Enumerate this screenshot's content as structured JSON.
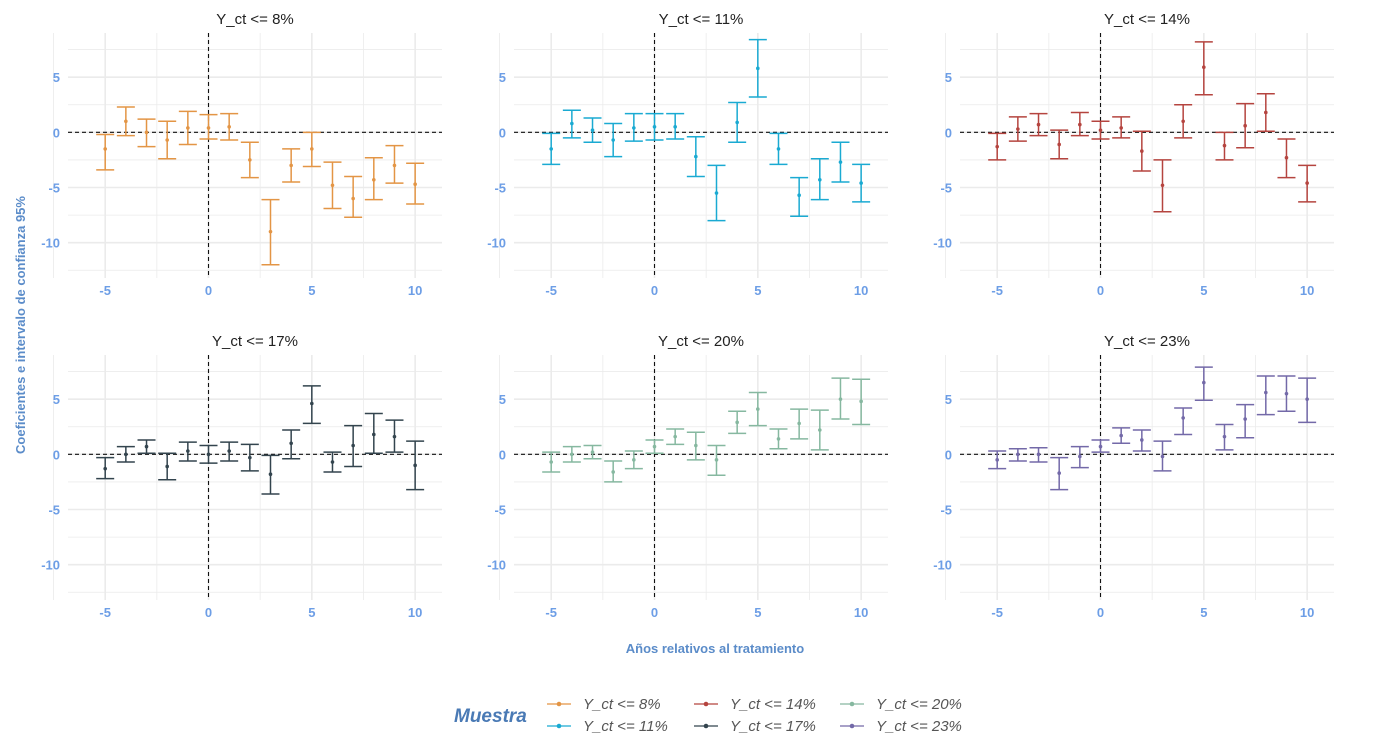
{
  "colors": {
    "Y_ct <= 8%": "#e39545",
    "Y_ct <= 11%": "#1aaad2",
    "Y_ct <= 14%": "#b5443f",
    "Y_ct <= 17%": "#33444e",
    "Y_ct <= 20%": "#86b8a0",
    "Y_ct <= 23%": "#7369a8",
    "gridline": "#ebebeb",
    "tick_text": "#6d9ee6",
    "axis_title": "#5b8cc9",
    "legend_title": "#4a7ab5"
  },
  "legend": {
    "title": "Muestra",
    "entries": [
      "Y_ct <= 8%",
      "Y_ct <= 11%",
      "Y_ct <= 14%",
      "Y_ct <= 17%",
      "Y_ct <= 20%",
      "Y_ct <= 23%"
    ]
  },
  "chart_data": {
    "type": "errorbar",
    "xlabel": "Años relativos al tratamiento",
    "ylabel": "Coeficientes e intervalo de confianza 95%",
    "xlim": [
      -6.8,
      11.3
    ],
    "ylim": [
      -13.2,
      9.0
    ],
    "xticks": [
      -5,
      0,
      5,
      10
    ],
    "yticks": [
      5,
      0,
      -5,
      -10
    ],
    "reference_lines": {
      "h": 0,
      "v": 0
    },
    "grid": true,
    "legend_position": "bottom",
    "panels": [
      {
        "title": "Y_ct <= 8%",
        "name": "Y_ct <= 8%",
        "x": [
          -5,
          -4,
          -3,
          -2,
          -1,
          0,
          1,
          2,
          3,
          4,
          5,
          6,
          7,
          8,
          9,
          10
        ],
        "y": [
          -1.5,
          1.0,
          0.0,
          -0.7,
          0.4,
          0.4,
          0.5,
          -2.5,
          -9.0,
          -3.0,
          -1.5,
          -4.8,
          -6.0,
          -4.3,
          -3.0,
          -4.7
        ],
        "lower": [
          -3.4,
          -0.3,
          -1.3,
          -2.4,
          -1.1,
          -0.6,
          -0.7,
          -4.1,
          -12.0,
          -4.5,
          -3.1,
          -6.9,
          -7.7,
          -6.1,
          -4.6,
          -6.5
        ],
        "upper": [
          -0.2,
          2.3,
          1.2,
          1.0,
          1.9,
          1.6,
          1.7,
          -0.9,
          -6.1,
          -1.5,
          0.0,
          -2.7,
          -4.0,
          -2.3,
          -1.2,
          -2.8
        ]
      },
      {
        "title": "Y_ct <= 11%",
        "name": "Y_ct <= 11%",
        "x": [
          -5,
          -4,
          -3,
          -2,
          -1,
          0,
          1,
          2,
          3,
          4,
          5,
          6,
          7,
          8,
          9,
          10
        ],
        "y": [
          -1.5,
          0.8,
          0.2,
          -0.7,
          0.4,
          0.5,
          0.5,
          -2.2,
          -5.5,
          0.9,
          5.8,
          -1.5,
          -5.7,
          -4.3,
          -2.7,
          -4.6
        ],
        "lower": [
          -2.9,
          -0.5,
          -0.9,
          -2.2,
          -0.8,
          -0.7,
          -0.6,
          -4.0,
          -8.0,
          -0.9,
          3.2,
          -2.9,
          -7.6,
          -6.1,
          -4.5,
          -6.3
        ],
        "upper": [
          -0.1,
          2.0,
          1.3,
          0.8,
          1.7,
          1.7,
          1.7,
          -0.4,
          -3.0,
          2.7,
          8.4,
          -0.1,
          -4.1,
          -2.4,
          -0.9,
          -2.9
        ]
      },
      {
        "title": "Y_ct <= 14%",
        "name": "Y_ct <= 14%",
        "x": [
          -5,
          -4,
          -3,
          -2,
          -1,
          0,
          1,
          2,
          3,
          4,
          5,
          6,
          7,
          8,
          9,
          10
        ],
        "y": [
          -1.3,
          0.3,
          0.7,
          -1.1,
          0.7,
          0.2,
          0.4,
          -1.7,
          -4.8,
          1.0,
          5.9,
          -1.2,
          0.6,
          1.8,
          -2.3,
          -4.6
        ],
        "lower": [
          -2.5,
          -0.8,
          -0.3,
          -2.4,
          -0.3,
          -0.6,
          -0.5,
          -3.5,
          -7.2,
          -0.5,
          3.4,
          -2.5,
          -1.4,
          0.1,
          -4.1,
          -6.3
        ],
        "upper": [
          -0.1,
          1.4,
          1.7,
          0.2,
          1.8,
          1.0,
          1.4,
          0.1,
          -2.5,
          2.5,
          8.2,
          0.0,
          2.6,
          3.5,
          -0.6,
          -3.0
        ]
      },
      {
        "title": "Y_ct <= 17%",
        "name": "Y_ct <= 17%",
        "x": [
          -5,
          -4,
          -3,
          -2,
          -1,
          0,
          1,
          2,
          3,
          4,
          5,
          6,
          7,
          8,
          9,
          10
        ],
        "y": [
          -1.3,
          0.0,
          0.7,
          -1.1,
          0.3,
          0.0,
          0.3,
          -0.3,
          -1.8,
          1.0,
          4.6,
          -0.7,
          0.8,
          1.8,
          1.6,
          -1.0
        ],
        "lower": [
          -2.2,
          -0.7,
          0.1,
          -2.3,
          -0.6,
          -0.8,
          -0.6,
          -1.5,
          -3.6,
          -0.4,
          2.8,
          -1.6,
          -1.1,
          0.1,
          0.2,
          -3.2
        ],
        "upper": [
          -0.3,
          0.7,
          1.3,
          0.1,
          1.1,
          0.8,
          1.1,
          0.9,
          -0.1,
          2.2,
          6.2,
          0.2,
          2.6,
          3.7,
          3.1,
          1.2
        ]
      },
      {
        "title": "Y_ct <= 20%",
        "name": "Y_ct <= 20%",
        "x": [
          -5,
          -4,
          -3,
          -2,
          -1,
          0,
          1,
          2,
          3,
          4,
          5,
          6,
          7,
          8,
          9,
          10
        ],
        "y": [
          -0.7,
          0.0,
          0.2,
          -1.6,
          -0.5,
          0.7,
          1.6,
          0.8,
          -0.5,
          2.9,
          4.1,
          1.4,
          2.8,
          2.2,
          5.0,
          4.8
        ],
        "lower": [
          -1.6,
          -0.7,
          -0.4,
          -2.5,
          -1.3,
          0.1,
          0.9,
          -0.5,
          -1.9,
          1.9,
          2.6,
          0.5,
          1.4,
          0.4,
          3.2,
          2.7
        ],
        "upper": [
          0.2,
          0.7,
          0.8,
          -0.6,
          0.3,
          1.3,
          2.3,
          2.0,
          0.8,
          3.9,
          5.6,
          2.3,
          4.1,
          4.0,
          6.9,
          6.8
        ]
      },
      {
        "title": "Y_ct <= 23%",
        "name": "Y_ct <= 23%",
        "x": [
          -5,
          -4,
          -3,
          -2,
          -1,
          0,
          1,
          2,
          3,
          4,
          5,
          6,
          7,
          8,
          9,
          10
        ],
        "y": [
          -0.5,
          0.0,
          0.0,
          -1.7,
          -0.2,
          0.7,
          1.7,
          1.3,
          -0.2,
          3.3,
          6.5,
          1.6,
          3.2,
          5.6,
          5.5,
          5.0
        ],
        "lower": [
          -1.3,
          -0.6,
          -0.7,
          -3.2,
          -1.2,
          0.2,
          1.0,
          0.3,
          -1.5,
          1.8,
          4.9,
          0.4,
          1.5,
          3.6,
          3.9,
          2.9
        ],
        "upper": [
          0.3,
          0.5,
          0.6,
          -0.3,
          0.7,
          1.3,
          2.4,
          2.2,
          1.2,
          4.2,
          7.9,
          2.7,
          4.5,
          7.1,
          7.1,
          6.9
        ]
      }
    ]
  }
}
